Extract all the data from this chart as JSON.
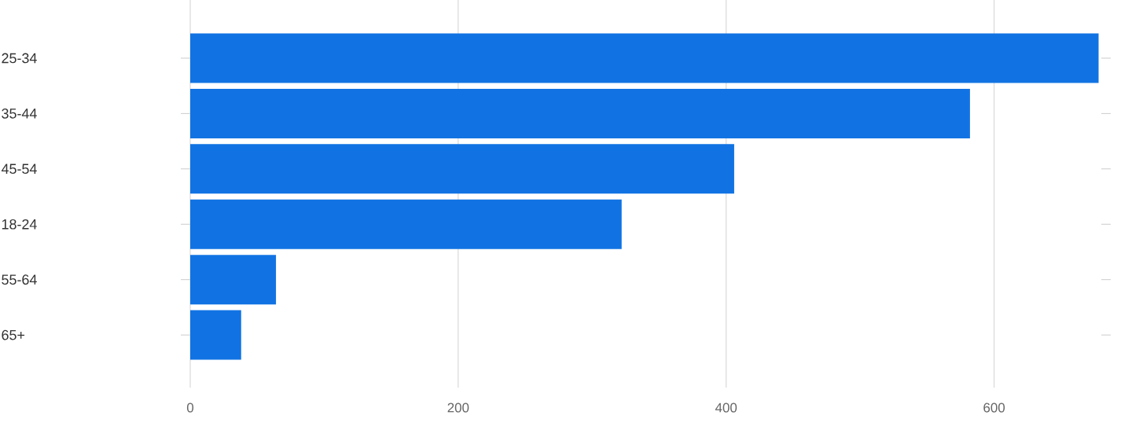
{
  "chart_data": {
    "type": "bar",
    "orientation": "horizontal",
    "categories": [
      "25-34",
      "35-44",
      "45-54",
      "18-24",
      "55-64",
      "65+"
    ],
    "values": [
      678,
      582,
      406,
      322,
      64,
      38
    ],
    "color": "#1173e3",
    "xlim": [
      0,
      680
    ],
    "xticks": [
      0,
      200,
      400,
      600
    ],
    "grid": "x"
  }
}
